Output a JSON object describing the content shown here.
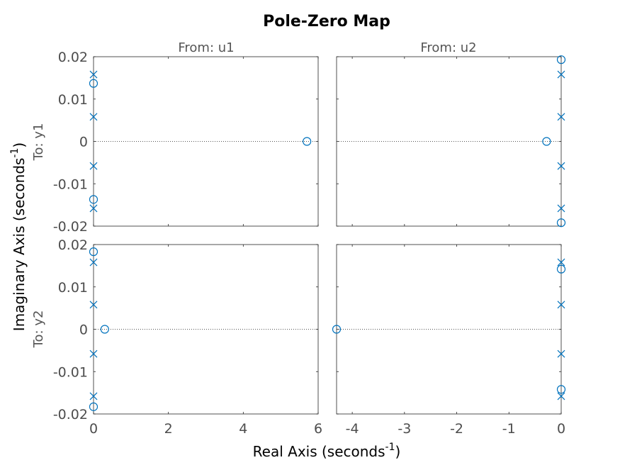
{
  "chart_data": {
    "type": "scatter",
    "title": "Pole-Zero Map",
    "xlabel_main": "Real Axis (seconds",
    "xlabel_exp": "-1",
    "xlabel_tail": ")",
    "ylabel_main": "Imaginary Axis (seconds",
    "ylabel_exp": "-1",
    "ylabel_tail": ")",
    "column_labels": [
      "From: u1",
      "From: u2"
    ],
    "row_labels": [
      "To: y1",
      "To: y2"
    ],
    "grid": false,
    "marker_color": "#0072BD",
    "columns": [
      {
        "xlim": [
          0,
          6
        ],
        "xticks": [
          0,
          2,
          4,
          6
        ],
        "xticklabels": [
          "0",
          "2",
          "4",
          "6"
        ]
      },
      {
        "xlim": [
          -4.3,
          0
        ],
        "xticks": [
          -4,
          -3,
          -2,
          -1,
          0
        ],
        "xticklabels": [
          "-4",
          "-3",
          "-2",
          "-1",
          "0"
        ]
      }
    ],
    "rows": [
      {
        "ylim": [
          -0.02,
          0.02
        ],
        "yticks": [
          -0.02,
          -0.01,
          0,
          0.01,
          0.02
        ],
        "yticklabels": [
          "-0.02",
          "-0.01",
          "0",
          "0.01",
          "0.02"
        ]
      },
      {
        "ylim": [
          -0.02,
          0.02
        ],
        "yticks": [
          -0.02,
          -0.01,
          0,
          0.01,
          0.02
        ],
        "yticklabels": [
          "-0.02",
          "-0.01",
          "0",
          "0.01",
          "0.02"
        ]
      }
    ],
    "panels": [
      {
        "row": 0,
        "col": 0,
        "poles": [
          [
            0,
            0.0158
          ],
          [
            0,
            0.0058
          ],
          [
            0,
            -0.0058
          ],
          [
            0,
            -0.0158
          ]
        ],
        "zeros": [
          [
            0,
            0.0137
          ],
          [
            0,
            -0.0137
          ],
          [
            5.7,
            0
          ]
        ]
      },
      {
        "row": 0,
        "col": 1,
        "poles": [
          [
            0,
            0.0158
          ],
          [
            0,
            0.0058
          ],
          [
            0,
            -0.0058
          ],
          [
            0,
            -0.0158
          ]
        ],
        "zeros": [
          [
            0,
            0.0193
          ],
          [
            0,
            -0.0192
          ],
          [
            -0.28,
            0
          ]
        ]
      },
      {
        "row": 1,
        "col": 0,
        "poles": [
          [
            0,
            0.0158
          ],
          [
            0,
            0.0058
          ],
          [
            0,
            -0.0058
          ],
          [
            0,
            -0.0158
          ]
        ],
        "zeros": [
          [
            0,
            0.0183
          ],
          [
            0,
            -0.0183
          ],
          [
            0.3,
            0
          ]
        ]
      },
      {
        "row": 1,
        "col": 1,
        "poles": [
          [
            0,
            0.0158
          ],
          [
            0,
            0.0058
          ],
          [
            0,
            -0.0058
          ],
          [
            0,
            -0.0158
          ]
        ],
        "zeros": [
          [
            0,
            0.0142
          ],
          [
            0,
            -0.0142
          ],
          [
            -4.3,
            0
          ]
        ]
      }
    ]
  }
}
